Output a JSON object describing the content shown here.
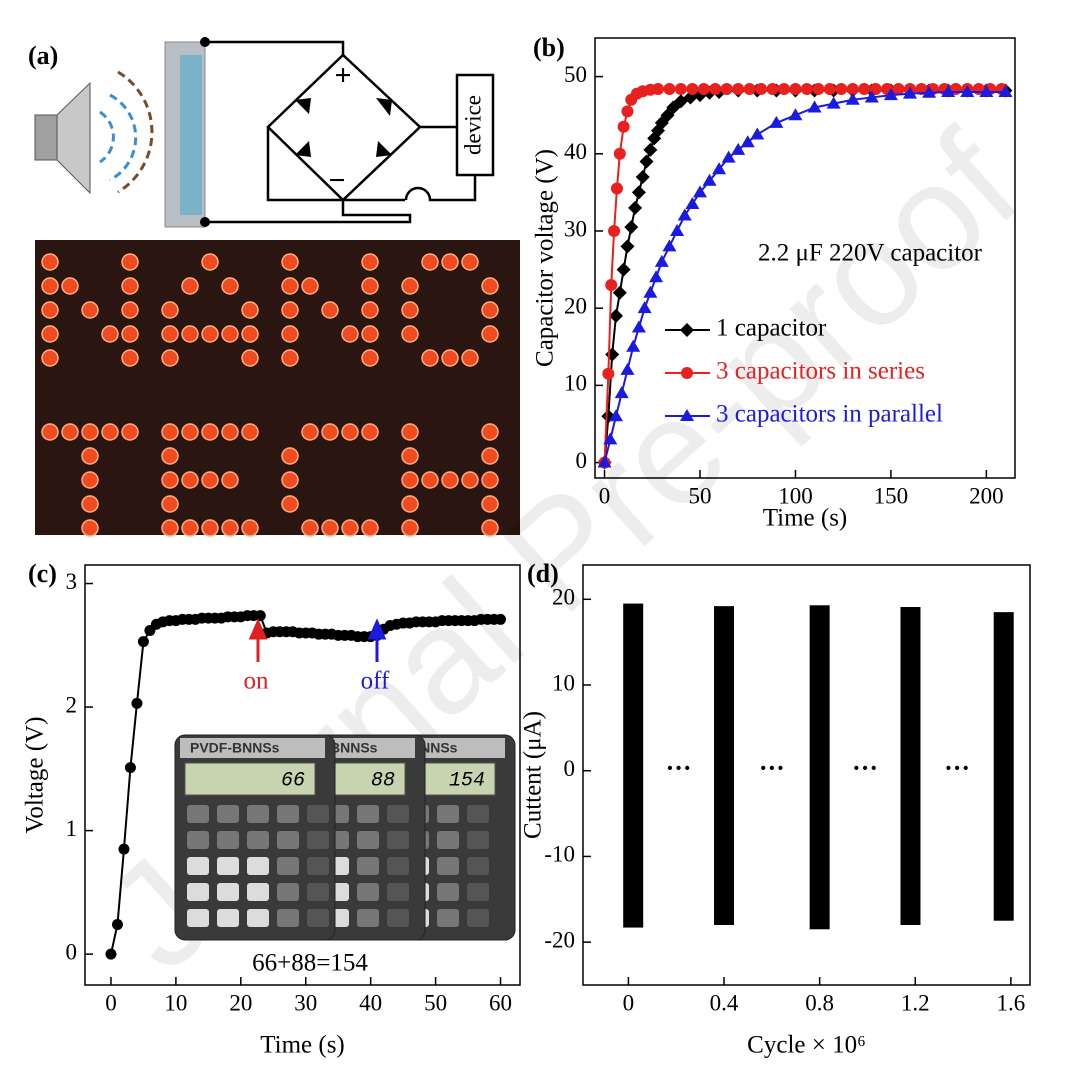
{
  "watermark": "Journal Pre-proof",
  "panel_a": {
    "label": "(a)",
    "plus": "+",
    "minus": "−",
    "device": "device"
  },
  "chart_data": [
    {
      "type": "line",
      "panel": "(b)",
      "x_label": "Time (s)",
      "y_label": "Capacitor voltage (V)",
      "annotation": "2.2 μF 220V capacitor",
      "xlim": [
        -5,
        215
      ],
      "xticks": [
        0,
        50,
        100,
        150,
        200
      ],
      "ylim": [
        -2,
        55
      ],
      "yticks": [
        0,
        10,
        20,
        30,
        40,
        50
      ],
      "legend": "lower right",
      "series": [
        {
          "name": "1 capacitor",
          "color": "#000000",
          "marker": "diamond",
          "x": [
            0,
            2,
            4,
            6,
            8,
            10,
            12,
            14,
            16,
            18,
            20,
            22,
            24,
            26,
            28,
            30,
            33,
            36,
            40,
            45,
            50,
            55,
            60,
            70,
            80,
            90,
            100,
            110,
            120,
            130,
            140,
            150,
            160,
            170,
            180,
            190,
            200,
            210
          ],
          "values": [
            0,
            6,
            14,
            19,
            22,
            25,
            28,
            30.5,
            33,
            35,
            37,
            39,
            40.5,
            42,
            43,
            44,
            45,
            46,
            46.8,
            47.3,
            47.6,
            47.9,
            48,
            48.2,
            48.2,
            48.2,
            48.2,
            48.2,
            48.2,
            48.2,
            48.2,
            48.2,
            48.2,
            48.2,
            48.2,
            48.2,
            48.2,
            48.2
          ]
        },
        {
          "name": "3 capacitors in series",
          "color": "#e8201e",
          "marker": "circle",
          "x": [
            0,
            2,
            3.5,
            5,
            6.5,
            8,
            10,
            12,
            14,
            17,
            20,
            24,
            28,
            34,
            40,
            46,
            52,
            58,
            64,
            70,
            76,
            82,
            88,
            94,
            100,
            106,
            112,
            118,
            124,
            130,
            136,
            142,
            148,
            154,
            160,
            166,
            172,
            178,
            184,
            190,
            196,
            202,
            208
          ],
          "values": [
            0,
            11.5,
            23,
            30,
            35.5,
            40,
            43.5,
            45.5,
            47,
            47.8,
            48.1,
            48.3,
            48.4,
            48.4,
            48.4,
            48.4,
            48.4,
            48.4,
            48.4,
            48.4,
            48.4,
            48.4,
            48.4,
            48.4,
            48.4,
            48.4,
            48.4,
            48.4,
            48.4,
            48.4,
            48.4,
            48.4,
            48.4,
            48.4,
            48.4,
            48.4,
            48.4,
            48.4,
            48.4,
            48.4,
            48.4,
            48.4,
            48.4
          ]
        },
        {
          "name": "3 capacitors in parallel",
          "color": "#1a1ae0",
          "marker": "triangle",
          "x": [
            0,
            3,
            6,
            9,
            12,
            15,
            18,
            21,
            24,
            27,
            30,
            34,
            38,
            42,
            46,
            50,
            55,
            60,
            65,
            70,
            75,
            80,
            90,
            100,
            110,
            120,
            130,
            140,
            150,
            160,
            170,
            180,
            190,
            200,
            210
          ],
          "values": [
            0,
            3,
            6,
            9,
            12,
            15,
            17.5,
            20,
            22,
            24,
            26,
            28,
            30,
            32,
            33.5,
            35,
            36.5,
            38,
            39.5,
            40.5,
            41.5,
            42.5,
            44,
            45,
            46,
            46.5,
            47,
            47.3,
            47.6,
            47.8,
            47.9,
            48,
            48,
            48,
            48
          ]
        }
      ]
    },
    {
      "type": "line",
      "panel": "(c)",
      "x_label": "Time (s)",
      "y_label": "Voltage (V)",
      "annotations": {
        "on": "on",
        "off": "off",
        "sum": "66+88=154"
      },
      "calculator": {
        "brands": [
          "PVDF-BNNSs",
          "BNNSs",
          "BNNSs"
        ],
        "displays": [
          "66",
          "88",
          "154"
        ]
      },
      "xlim": [
        -4,
        63
      ],
      "xticks": [
        0,
        10,
        20,
        30,
        40,
        50,
        60
      ],
      "ylim": [
        -0.25,
        3.15
      ],
      "yticks": [
        0,
        1,
        2,
        3
      ],
      "series": [
        {
          "color": "#000000",
          "marker": "circle",
          "x": [
            0,
            1,
            2,
            3,
            4,
            5,
            6,
            7,
            8,
            9,
            10,
            11,
            12,
            13,
            14,
            15,
            16,
            17,
            18,
            19,
            20,
            21,
            22,
            23,
            24,
            25,
            26,
            27,
            28,
            29,
            30,
            31,
            32,
            33,
            34,
            35,
            36,
            37,
            38,
            39,
            40,
            41,
            42,
            43,
            44,
            45,
            46,
            47,
            48,
            49,
            50,
            51,
            52,
            53,
            54,
            55,
            56,
            57,
            58,
            59,
            60
          ],
          "values": [
            0,
            0.24,
            0.85,
            1.51,
            2.03,
            2.53,
            2.62,
            2.67,
            2.69,
            2.7,
            2.7,
            2.71,
            2.71,
            2.71,
            2.72,
            2.72,
            2.72,
            2.72,
            2.73,
            2.73,
            2.73,
            2.74,
            2.74,
            2.74,
            2.6,
            2.61,
            2.61,
            2.61,
            2.61,
            2.6,
            2.6,
            2.6,
            2.59,
            2.59,
            2.59,
            2.58,
            2.58,
            2.58,
            2.57,
            2.57,
            2.57,
            2.58,
            2.63,
            2.66,
            2.67,
            2.68,
            2.68,
            2.69,
            2.69,
            2.69,
            2.69,
            2.7,
            2.7,
            2.7,
            2.7,
            2.7,
            2.7,
            2.71,
            2.71,
            2.71,
            2.71
          ]
        }
      ]
    },
    {
      "type": "range",
      "panel": "(d)",
      "x_label": "Cycle × 10⁶",
      "y_label": "Cuttent (μA)",
      "gaps": [
        "···",
        "···",
        "···",
        "···"
      ],
      "xlim": [
        -0.19,
        1.68
      ],
      "xticks": [
        0,
        0.4,
        0.8,
        1.2,
        1.6
      ],
      "ylim": [
        -25,
        24
      ],
      "yticks": [
        -20,
        -10,
        0,
        10,
        20
      ],
      "color": "#000000",
      "x": [
        0.02,
        0.4,
        0.8,
        1.18,
        1.57
      ],
      "high": [
        19.5,
        19.2,
        19.3,
        19.1,
        18.5
      ],
      "low": [
        -18.3,
        -18,
        -18.5,
        -18,
        -17.5
      ]
    }
  ]
}
